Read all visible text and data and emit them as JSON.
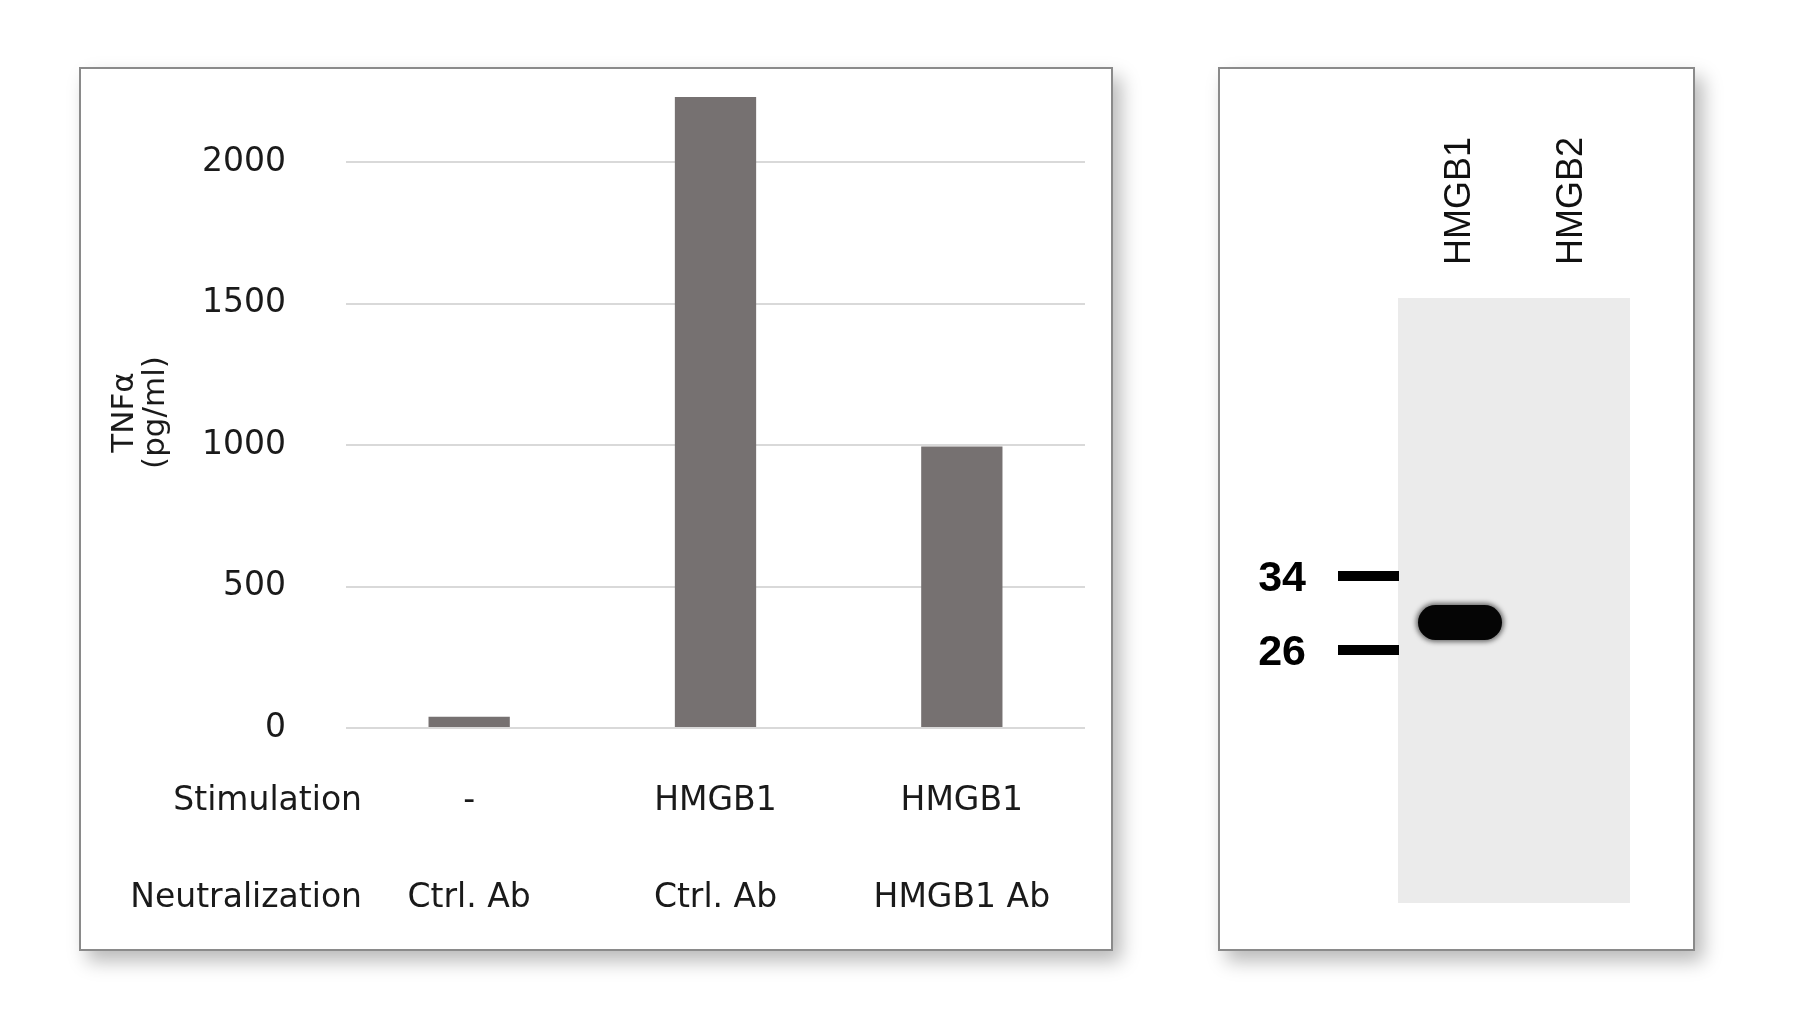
{
  "chart_data": [
    {
      "type": "bar",
      "categories": [
        "-\nCtrl. Ab",
        "HMGB1\nCtrl. Ab",
        "HMGB1\nHMGB1 Ab"
      ],
      "values": [
        40,
        2230,
        995
      ],
      "color": "#767171",
      "ylabel": "TNFα\n(pg/ml)",
      "ylim": [
        0,
        2230
      ],
      "yticks": [
        0,
        500,
        1000,
        1500,
        2000
      ],
      "grid": "y",
      "annotations": [
        "Stimulation",
        "Neutralization"
      ]
    },
    {
      "type": "other",
      "categories": [
        "HMGB1",
        "HMGB2"
      ],
      "annotations": [
        "34",
        "26"
      ]
    }
  ]
}
